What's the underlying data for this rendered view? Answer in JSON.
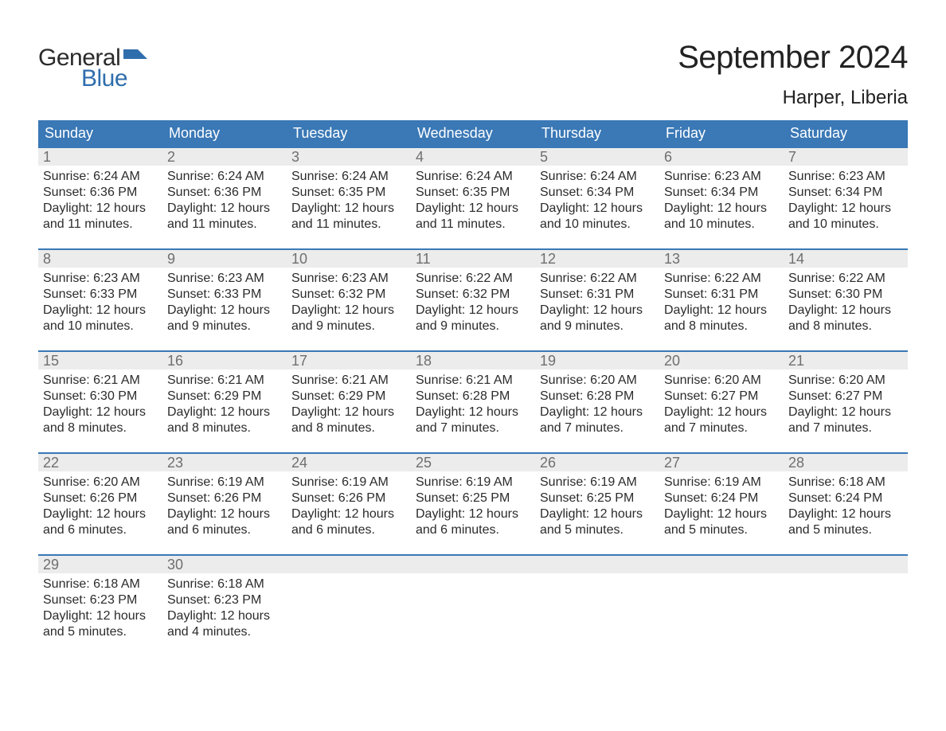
{
  "brand": {
    "word1": "General",
    "word2": "Blue",
    "word1_color": "#2b2b2b",
    "word2_color": "#2f6ead",
    "flag_color": "#2f6ead"
  },
  "title": {
    "month_year": "September 2024",
    "location": "Harper, Liberia",
    "title_fontsize": 40,
    "location_fontsize": 24,
    "text_color": "#222222"
  },
  "calendar": {
    "header_bg": "#3a78b6",
    "header_text_color": "#ffffff",
    "row_border_color": "#3a78b6",
    "daynum_bg": "#ececec",
    "daynum_color": "#6f6f6f",
    "content_color": "#2b2b2b",
    "background_color": "#ffffff",
    "weekdays": [
      "Sunday",
      "Monday",
      "Tuesday",
      "Wednesday",
      "Thursday",
      "Friday",
      "Saturday"
    ],
    "weeks": [
      [
        {
          "n": "1",
          "sunrise": "Sunrise: 6:24 AM",
          "sunset": "Sunset: 6:36 PM",
          "day1": "Daylight: 12 hours",
          "day2": "and 11 minutes."
        },
        {
          "n": "2",
          "sunrise": "Sunrise: 6:24 AM",
          "sunset": "Sunset: 6:36 PM",
          "day1": "Daylight: 12 hours",
          "day2": "and 11 minutes."
        },
        {
          "n": "3",
          "sunrise": "Sunrise: 6:24 AM",
          "sunset": "Sunset: 6:35 PM",
          "day1": "Daylight: 12 hours",
          "day2": "and 11 minutes."
        },
        {
          "n": "4",
          "sunrise": "Sunrise: 6:24 AM",
          "sunset": "Sunset: 6:35 PM",
          "day1": "Daylight: 12 hours",
          "day2": "and 11 minutes."
        },
        {
          "n": "5",
          "sunrise": "Sunrise: 6:24 AM",
          "sunset": "Sunset: 6:34 PM",
          "day1": "Daylight: 12 hours",
          "day2": "and 10 minutes."
        },
        {
          "n": "6",
          "sunrise": "Sunrise: 6:23 AM",
          "sunset": "Sunset: 6:34 PM",
          "day1": "Daylight: 12 hours",
          "day2": "and 10 minutes."
        },
        {
          "n": "7",
          "sunrise": "Sunrise: 6:23 AM",
          "sunset": "Sunset: 6:34 PM",
          "day1": "Daylight: 12 hours",
          "day2": "and 10 minutes."
        }
      ],
      [
        {
          "n": "8",
          "sunrise": "Sunrise: 6:23 AM",
          "sunset": "Sunset: 6:33 PM",
          "day1": "Daylight: 12 hours",
          "day2": "and 10 minutes."
        },
        {
          "n": "9",
          "sunrise": "Sunrise: 6:23 AM",
          "sunset": "Sunset: 6:33 PM",
          "day1": "Daylight: 12 hours",
          "day2": "and 9 minutes."
        },
        {
          "n": "10",
          "sunrise": "Sunrise: 6:23 AM",
          "sunset": "Sunset: 6:32 PM",
          "day1": "Daylight: 12 hours",
          "day2": "and 9 minutes."
        },
        {
          "n": "11",
          "sunrise": "Sunrise: 6:22 AM",
          "sunset": "Sunset: 6:32 PM",
          "day1": "Daylight: 12 hours",
          "day2": "and 9 minutes."
        },
        {
          "n": "12",
          "sunrise": "Sunrise: 6:22 AM",
          "sunset": "Sunset: 6:31 PM",
          "day1": "Daylight: 12 hours",
          "day2": "and 9 minutes."
        },
        {
          "n": "13",
          "sunrise": "Sunrise: 6:22 AM",
          "sunset": "Sunset: 6:31 PM",
          "day1": "Daylight: 12 hours",
          "day2": "and 8 minutes."
        },
        {
          "n": "14",
          "sunrise": "Sunrise: 6:22 AM",
          "sunset": "Sunset: 6:30 PM",
          "day1": "Daylight: 12 hours",
          "day2": "and 8 minutes."
        }
      ],
      [
        {
          "n": "15",
          "sunrise": "Sunrise: 6:21 AM",
          "sunset": "Sunset: 6:30 PM",
          "day1": "Daylight: 12 hours",
          "day2": "and 8 minutes."
        },
        {
          "n": "16",
          "sunrise": "Sunrise: 6:21 AM",
          "sunset": "Sunset: 6:29 PM",
          "day1": "Daylight: 12 hours",
          "day2": "and 8 minutes."
        },
        {
          "n": "17",
          "sunrise": "Sunrise: 6:21 AM",
          "sunset": "Sunset: 6:29 PM",
          "day1": "Daylight: 12 hours",
          "day2": "and 8 minutes."
        },
        {
          "n": "18",
          "sunrise": "Sunrise: 6:21 AM",
          "sunset": "Sunset: 6:28 PM",
          "day1": "Daylight: 12 hours",
          "day2": "and 7 minutes."
        },
        {
          "n": "19",
          "sunrise": "Sunrise: 6:20 AM",
          "sunset": "Sunset: 6:28 PM",
          "day1": "Daylight: 12 hours",
          "day2": "and 7 minutes."
        },
        {
          "n": "20",
          "sunrise": "Sunrise: 6:20 AM",
          "sunset": "Sunset: 6:27 PM",
          "day1": "Daylight: 12 hours",
          "day2": "and 7 minutes."
        },
        {
          "n": "21",
          "sunrise": "Sunrise: 6:20 AM",
          "sunset": "Sunset: 6:27 PM",
          "day1": "Daylight: 12 hours",
          "day2": "and 7 minutes."
        }
      ],
      [
        {
          "n": "22",
          "sunrise": "Sunrise: 6:20 AM",
          "sunset": "Sunset: 6:26 PM",
          "day1": "Daylight: 12 hours",
          "day2": "and 6 minutes."
        },
        {
          "n": "23",
          "sunrise": "Sunrise: 6:19 AM",
          "sunset": "Sunset: 6:26 PM",
          "day1": "Daylight: 12 hours",
          "day2": "and 6 minutes."
        },
        {
          "n": "24",
          "sunrise": "Sunrise: 6:19 AM",
          "sunset": "Sunset: 6:26 PM",
          "day1": "Daylight: 12 hours",
          "day2": "and 6 minutes."
        },
        {
          "n": "25",
          "sunrise": "Sunrise: 6:19 AM",
          "sunset": "Sunset: 6:25 PM",
          "day1": "Daylight: 12 hours",
          "day2": "and 6 minutes."
        },
        {
          "n": "26",
          "sunrise": "Sunrise: 6:19 AM",
          "sunset": "Sunset: 6:25 PM",
          "day1": "Daylight: 12 hours",
          "day2": "and 5 minutes."
        },
        {
          "n": "27",
          "sunrise": "Sunrise: 6:19 AM",
          "sunset": "Sunset: 6:24 PM",
          "day1": "Daylight: 12 hours",
          "day2": "and 5 minutes."
        },
        {
          "n": "28",
          "sunrise": "Sunrise: 6:18 AM",
          "sunset": "Sunset: 6:24 PM",
          "day1": "Daylight: 12 hours",
          "day2": "and 5 minutes."
        }
      ],
      [
        {
          "n": "29",
          "sunrise": "Sunrise: 6:18 AM",
          "sunset": "Sunset: 6:23 PM",
          "day1": "Daylight: 12 hours",
          "day2": "and 5 minutes."
        },
        {
          "n": "30",
          "sunrise": "Sunrise: 6:18 AM",
          "sunset": "Sunset: 6:23 PM",
          "day1": "Daylight: 12 hours",
          "day2": "and 4 minutes."
        },
        {
          "empty": true
        },
        {
          "empty": true
        },
        {
          "empty": true
        },
        {
          "empty": true
        },
        {
          "empty": true
        }
      ]
    ]
  }
}
